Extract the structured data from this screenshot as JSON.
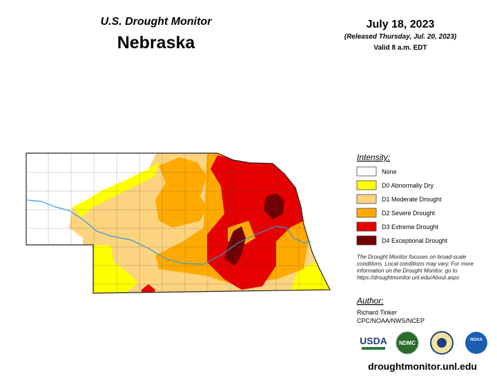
{
  "header": {
    "program": "U.S. Drought Monitor",
    "state": "Nebraska",
    "date": "July 18, 2023",
    "released": "(Released Thursday, Jul. 20, 2023)",
    "valid": "Valid 8 a.m. EDT"
  },
  "legend": {
    "title": "Intensity:",
    "items": [
      {
        "label": "None",
        "color": "#ffffff"
      },
      {
        "label": "D0 Abnormally Dry",
        "color": "#ffff00"
      },
      {
        "label": "D1 Moderate Drought",
        "color": "#fcd37f"
      },
      {
        "label": "D2 Severe Drought",
        "color": "#ffaa00"
      },
      {
        "label": "D3 Extreme Drought",
        "color": "#e60000"
      },
      {
        "label": "D4 Exceptional Drought",
        "color": "#730000"
      }
    ]
  },
  "note": [
    "The Drought Monitor focuses on broad-scale",
    "conditions. Local conditions may vary. For more",
    "information on the Drought Monitor, go to",
    "https://droughtmonitor.unl.edu/About.aspx"
  ],
  "author": {
    "title": "Author:",
    "name": "Richard Tinker",
    "affiliation": "CPC/NOAA/NWS/NCEP"
  },
  "logos": [
    "USDA",
    "NDMC",
    "NOAA"
  ],
  "footer": "droughtmonitor.unl.edu"
}
